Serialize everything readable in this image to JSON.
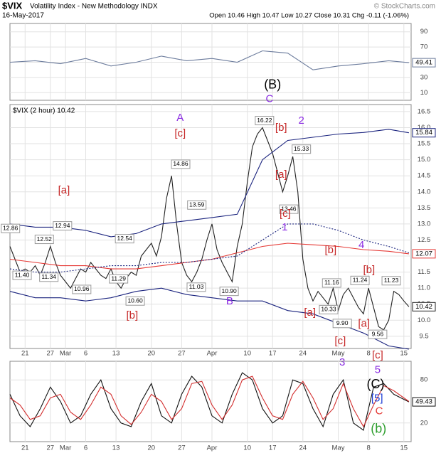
{
  "header": {
    "symbol": "$VIX",
    "name": "Volatility Index - New Methodology INDX",
    "date": "16-May-2017",
    "quote": "Open 10.46  High 10.47  Low 10.27  Close 10.31  Chg -0.11 (-1.06%)",
    "credit": "© StockCharts.com"
  },
  "chart_data": [
    {
      "type": "line",
      "ylim": [
        0,
        100
      ],
      "yticks": [
        10,
        30,
        50,
        70,
        90
      ],
      "grid": true,
      "series": [
        {
          "name": "RSI",
          "color": "#6b7b9c",
          "tag": true,
          "x": [
            0,
            5,
            10,
            15,
            20,
            25,
            30,
            35,
            40,
            45,
            50,
            55,
            60,
            65,
            70,
            75,
            79
          ],
          "values": [
            50,
            52,
            48,
            55,
            45,
            50,
            58,
            52,
            55,
            50,
            65,
            62,
            40,
            45,
            48,
            52,
            49.41
          ]
        }
      ]
    },
    {
      "type": "line",
      "title": "$VIX (2 hour) 10.42",
      "ylim": [
        9.12,
        16.72
      ],
      "yticks": [
        9.5,
        {
          "value": 10,
          "label": "10.0"
        },
        10.5,
        {
          "value": 11,
          "label": "11.0"
        },
        11.5,
        {
          "value": 12,
          "label": "12.0"
        },
        12.5,
        {
          "value": 13,
          "label": "13.0"
        },
        13.5,
        {
          "value": 14,
          "label": "14.0"
        },
        14.5,
        {
          "value": 15,
          "label": "15.0"
        },
        15.5,
        {
          "value": 16,
          "label": "16.0"
        },
        16.5
      ],
      "xlim": [
        0,
        80
      ],
      "xticks": [
        {
          "value": 3,
          "label": "21"
        },
        {
          "value": 8,
          "label": "27"
        },
        {
          "value": 11,
          "label": "Mar"
        },
        {
          "value": 15,
          "label": "6"
        },
        {
          "value": 21,
          "label": "13"
        },
        {
          "value": 28,
          "label": "20"
        },
        {
          "value": 34,
          "label": "27"
        },
        {
          "value": 40,
          "label": "Apr"
        },
        {
          "value": 47,
          "label": "10"
        },
        {
          "value": 52,
          "label": "17"
        },
        {
          "value": 58,
          "label": "24"
        },
        {
          "value": 65,
          "label": "May"
        },
        {
          "value": 71,
          "label": "8"
        },
        {
          "value": 78,
          "label": "15"
        }
      ],
      "grid": true,
      "x": [
        0,
        1,
        2,
        3,
        4,
        5,
        6,
        7,
        8,
        9,
        10,
        11,
        12,
        13,
        14,
        15,
        16,
        17,
        18,
        19,
        20,
        21,
        22,
        23,
        24,
        25,
        26,
        27,
        28,
        29,
        30,
        31,
        32,
        33,
        34,
        35,
        36,
        37,
        38,
        39,
        40,
        41,
        42,
        43,
        44,
        45,
        46,
        47,
        48,
        49,
        50,
        51,
        52,
        53,
        54,
        55,
        56,
        57,
        58,
        59,
        60,
        61,
        62,
        63,
        64,
        65,
        66,
        67,
        68,
        69,
        70,
        71,
        72,
        73,
        74,
        75,
        76,
        77,
        78,
        79
      ],
      "series": [
        {
          "name": "Close",
          "color": "#222222",
          "tag": true,
          "values": [
            12.3,
            11.9,
            11.5,
            11.6,
            11.5,
            11.7,
            11.4,
            11.8,
            12.3,
            11.8,
            11.4,
            11.2,
            11.0,
            11.3,
            11.6,
            11.5,
            11.8,
            11.6,
            11.4,
            11.3,
            11.6,
            11.2,
            11.0,
            11.3,
            11.5,
            11.4,
            12.0,
            12.2,
            12.4,
            12.0,
            12.6,
            13.8,
            14.5,
            13.0,
            11.8,
            11.4,
            11.2,
            11.5,
            11.9,
            12.5,
            13.0,
            12.2,
            11.8,
            11.5,
            11.2,
            12.3,
            13.0,
            14.3,
            15.4,
            15.8,
            16.0,
            15.6,
            15.2,
            14.6,
            14.0,
            14.5,
            15.1,
            14.0,
            11.9,
            11.0,
            10.6,
            10.9,
            10.7,
            10.5,
            11.0,
            10.3,
            10.8,
            11.0,
            10.7,
            10.4,
            10.2,
            11.0,
            10.4,
            9.8,
            9.7,
            10.0,
            10.9,
            10.8,
            10.6,
            10.42
          ]
        },
        {
          "name": "Upper Band",
          "color": "#1a237e",
          "tag": true,
          "x": [
            0,
            5,
            10,
            15,
            20,
            25,
            30,
            35,
            40,
            45,
            50,
            55,
            60,
            65,
            70,
            75,
            79
          ],
          "values": [
            13.0,
            12.9,
            12.9,
            12.8,
            12.6,
            12.7,
            13.0,
            13.1,
            13.2,
            13.3,
            15.0,
            15.6,
            15.7,
            15.8,
            15.85,
            15.95,
            15.84
          ]
        },
        {
          "name": "Lower Band",
          "color": "#1a237e",
          "x": [
            0,
            5,
            10,
            15,
            20,
            25,
            30,
            35,
            40,
            45,
            50,
            55,
            60,
            65,
            70,
            75,
            79
          ],
          "values": [
            10.9,
            10.7,
            10.7,
            10.6,
            10.7,
            10.9,
            11.0,
            10.8,
            10.7,
            10.6,
            10.6,
            10.3,
            10.2,
            9.9,
            9.6,
            9.2,
            9.1
          ]
        },
        {
          "name": "MA",
          "color": "#e53935",
          "tag": true,
          "x": [
            0,
            5,
            10,
            15,
            20,
            25,
            30,
            35,
            40,
            45,
            50,
            55,
            60,
            65,
            70,
            75,
            79
          ],
          "values": [
            11.9,
            11.8,
            11.7,
            11.7,
            11.6,
            11.6,
            11.7,
            11.8,
            11.9,
            12.1,
            12.3,
            12.4,
            12.35,
            12.3,
            12.2,
            12.15,
            12.07
          ]
        },
        {
          "name": "Middle Band",
          "color": "#1a237e",
          "dashed": true,
          "x": [
            0,
            5,
            10,
            15,
            20,
            25,
            30,
            35,
            40,
            45,
            50,
            55,
            60,
            65,
            70,
            75,
            79
          ],
          "values": [
            11.6,
            11.5,
            11.5,
            11.6,
            11.7,
            11.7,
            11.8,
            11.8,
            11.9,
            12.0,
            12.5,
            13.0,
            13.0,
            12.8,
            12.5,
            12.3,
            12.1
          ]
        }
      ],
      "labels": [
        {
          "x": 0.1,
          "value": 12.86,
          "label": "12.86"
        },
        {
          "x": 6.8,
          "value": 12.52,
          "label": "12.52"
        },
        {
          "x": 10.4,
          "value": 12.94,
          "label": "12.94"
        },
        {
          "x": 22.7,
          "value": 12.54,
          "label": "12.54"
        },
        {
          "x": 33.8,
          "value": 14.86,
          "label": "14.86"
        },
        {
          "x": 37,
          "value": 13.59,
          "label": "13.59"
        },
        {
          "x": 50.4,
          "value": 16.22,
          "label": "16.22"
        },
        {
          "x": 57.7,
          "value": 15.33,
          "label": "15.33"
        },
        {
          "x": 55.2,
          "value": 13.46,
          "label": "13.46"
        },
        {
          "x": 2.4,
          "value": 11.4,
          "label": "11.40"
        },
        {
          "x": 7.7,
          "value": 11.34,
          "label": "11.34"
        },
        {
          "x": 14.2,
          "value": 10.96,
          "label": "10.96"
        },
        {
          "x": 21.5,
          "value": 11.29,
          "label": "11.29"
        },
        {
          "x": 24.8,
          "value": 10.6,
          "label": "10.60"
        },
        {
          "x": 36.9,
          "value": 11.03,
          "label": "11.03"
        },
        {
          "x": 43.4,
          "value": 10.9,
          "label": "10.90"
        },
        {
          "x": 63.7,
          "value": 11.16,
          "label": "11.16"
        },
        {
          "x": 69.3,
          "value": 11.24,
          "label": "11.24"
        },
        {
          "x": 75.5,
          "value": 11.23,
          "label": "11.23"
        },
        {
          "x": 63.1,
          "value": 10.33,
          "label": "10.33"
        },
        {
          "x": 65.8,
          "value": 9.9,
          "label": "9.90"
        },
        {
          "x": 72.8,
          "value": 9.56,
          "label": "9.56"
        }
      ],
      "annotations": [
        {
          "text": "(B)",
          "x": 52,
          "y": 17.32,
          "color": "#000000"
        },
        {
          "text": "C",
          "x": 51.4,
          "y": 16.88,
          "color": "#8a2be2"
        },
        {
          "text": "A",
          "x": 33.7,
          "y": 16.3,
          "color": "#8a2be2"
        },
        {
          "text": "[c]",
          "x": 33.7,
          "y": 15.81,
          "color": "#c62828"
        },
        {
          "text": "[a]",
          "x": 10.7,
          "y": 14.04,
          "color": "#c62828"
        },
        {
          "text": "[b]",
          "x": 24.2,
          "y": 10.14,
          "color": "#c62828"
        },
        {
          "text": "B",
          "x": 43.5,
          "y": 10.58,
          "color": "#8a2be2"
        },
        {
          "text": "[b]",
          "x": 53.7,
          "y": 15.99,
          "color": "#c62828"
        },
        {
          "text": "2",
          "x": 57.7,
          "y": 16.21,
          "color": "#8a2be2"
        },
        {
          "text": "[a]",
          "x": 53.7,
          "y": 14.53,
          "color": "#c62828"
        },
        {
          "text": "[c]",
          "x": 54.5,
          "y": 13.31,
          "color": "#c62828"
        },
        {
          "text": "1",
          "x": 54.4,
          "y": 12.89,
          "color": "#8a2be2"
        },
        {
          "text": "[b]",
          "x": 63.5,
          "y": 12.18,
          "color": "#c62828"
        },
        {
          "text": "4",
          "x": 69.6,
          "y": 12.33,
          "color": "#8a2be2"
        },
        {
          "text": "[b]",
          "x": 71.1,
          "y": 11.56,
          "color": "#c62828"
        },
        {
          "text": "[a]",
          "x": 59.4,
          "y": 10.23,
          "color": "#c62828"
        },
        {
          "text": "[a]",
          "x": 70.1,
          "y": 9.88,
          "color": "#c62828"
        },
        {
          "text": "[c]",
          "x": 65.4,
          "y": 9.34,
          "color": "#c62828"
        },
        {
          "text": "[c]",
          "x": 72.8,
          "y": 8.9,
          "color": "#c62828"
        },
        {
          "text": "3",
          "x": 65.8,
          "y": 8.68,
          "color": "#8a2be2"
        },
        {
          "text": "5",
          "x": 72.8,
          "y": 8.44,
          "color": "#8a2be2"
        }
      ]
    },
    {
      "type": "line",
      "ylim": [
        0,
        100
      ],
      "yticks": [
        20,
        80
      ],
      "grid": true,
      "series": [
        {
          "name": "%K",
          "color": "#111111",
          "tag": true,
          "x": [
            0,
            2,
            4,
            6,
            8,
            10,
            12,
            14,
            16,
            18,
            20,
            22,
            24,
            26,
            28,
            30,
            32,
            34,
            36,
            38,
            40,
            42,
            44,
            46,
            48,
            50,
            52,
            54,
            56,
            58,
            60,
            62,
            64,
            66,
            68,
            70,
            72,
            74,
            76,
            79
          ],
          "values": [
            60,
            30,
            15,
            40,
            70,
            50,
            20,
            30,
            60,
            80,
            40,
            20,
            15,
            50,
            75,
            30,
            20,
            60,
            85,
            70,
            30,
            20,
            60,
            90,
            80,
            40,
            20,
            30,
            80,
            75,
            40,
            15,
            60,
            80,
            20,
            10,
            70,
            75,
            60,
            49.43
          ]
        },
        {
          "name": "%D",
          "color": "#d32f2f",
          "x": [
            0,
            2,
            4,
            6,
            8,
            10,
            12,
            14,
            16,
            18,
            20,
            22,
            24,
            26,
            28,
            30,
            32,
            34,
            36,
            38,
            40,
            42,
            44,
            46,
            48,
            50,
            52,
            54,
            56,
            58,
            60,
            62,
            64,
            66,
            68,
            70,
            72,
            74,
            76,
            79
          ],
          "values": [
            55,
            45,
            25,
            30,
            55,
            60,
            35,
            25,
            45,
            70,
            60,
            30,
            18,
            35,
            60,
            50,
            25,
            40,
            75,
            78,
            45,
            25,
            45,
            80,
            85,
            55,
            30,
            25,
            60,
            78,
            55,
            25,
            40,
            75,
            40,
            15,
            45,
            72,
            65,
            50
          ]
        }
      ],
      "annotations": [
        {
          "text": "(C)",
          "x": 72.4,
          "y": 73,
          "color": "#000000"
        },
        {
          "text": "[5]",
          "x": 72.7,
          "y": 54,
          "color": "#1f3fd6"
        },
        {
          "text": "C",
          "x": 73.1,
          "y": 36,
          "color": "#e53935"
        },
        {
          "text": "(b)",
          "x": 73,
          "y": 11,
          "color": "#2e9e2e"
        }
      ]
    }
  ]
}
